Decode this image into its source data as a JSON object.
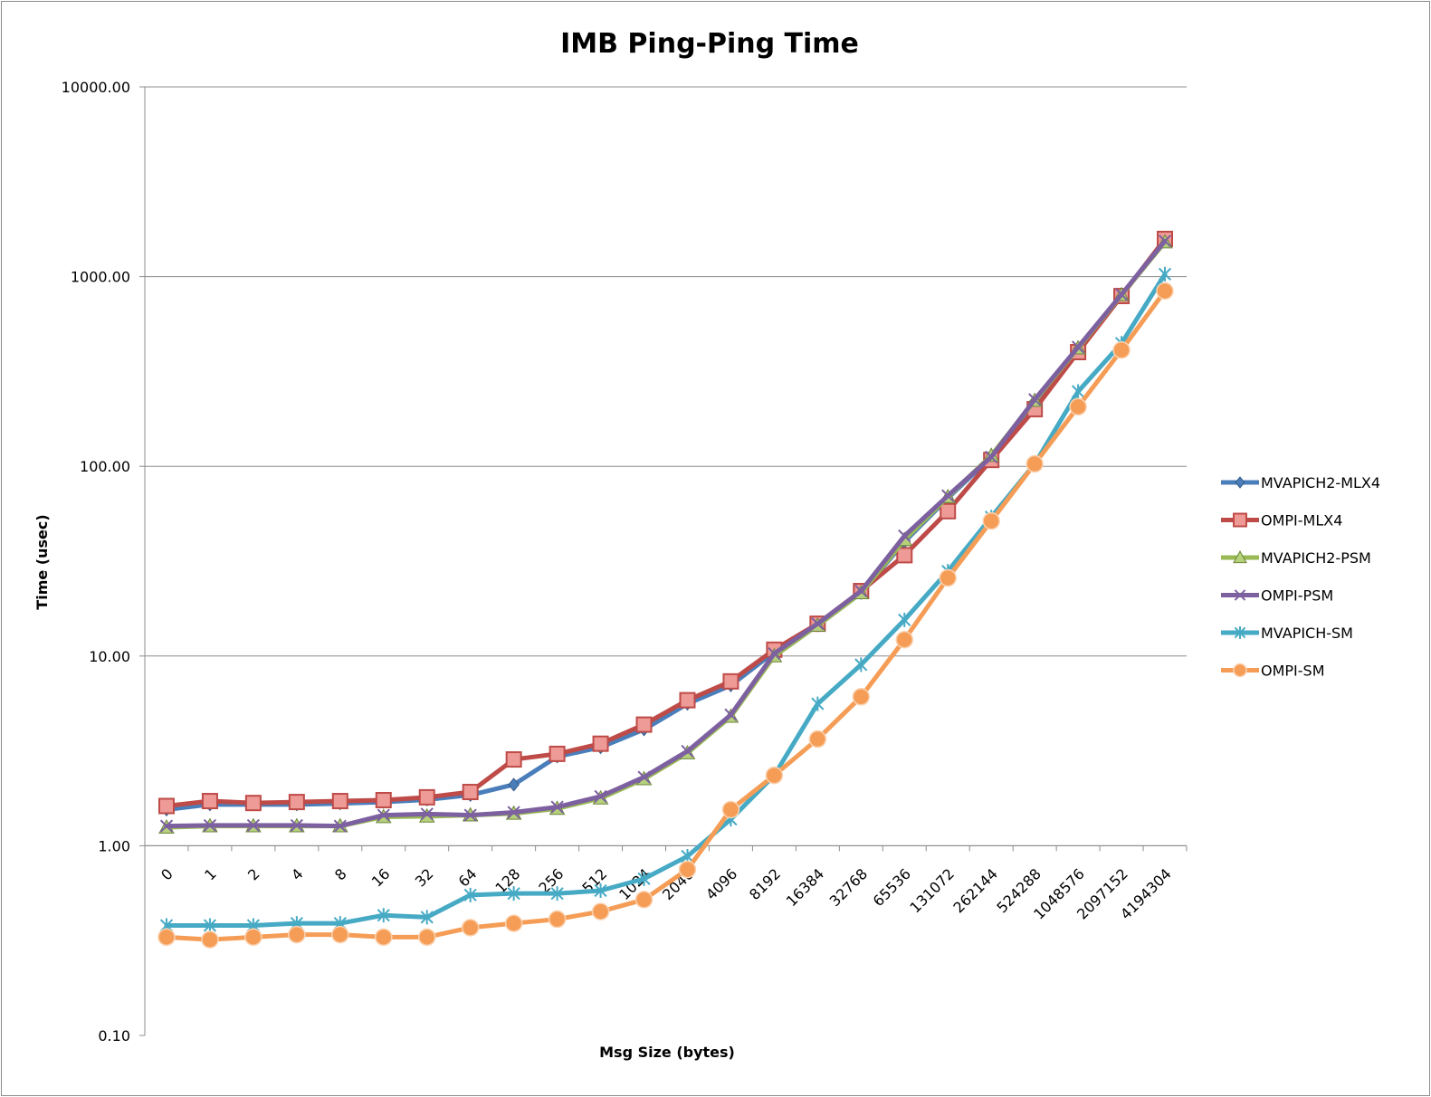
{
  "chart_data": {
    "type": "line",
    "title": "IMB Ping-Ping Time",
    "xlabel": "Msg Size (bytes)",
    "ylabel": "Time (usec)",
    "yscale": "log",
    "ylim": [
      0.1,
      10000
    ],
    "y_tick_labels": [
      "0.10",
      "1.00",
      "10.00",
      "100.00",
      "1000.00",
      "10000.00"
    ],
    "y_tick_values": [
      0.1,
      1,
      10,
      100,
      1000,
      10000
    ],
    "grid": "horizontal",
    "legend_position": "right",
    "categories": [
      "0",
      "1",
      "2",
      "4",
      "8",
      "16",
      "32",
      "64",
      "128",
      "256",
      "512",
      "1024",
      "2048",
      "4096",
      "8192",
      "16384",
      "32768",
      "65536",
      "131072",
      "262144",
      "524288",
      "1048576",
      "2097152",
      "4194304"
    ],
    "series": [
      {
        "name": "MVAPICH2-MLX4",
        "color": "#4a7ebb",
        "marker": "diamond",
        "values": [
          1.55,
          1.65,
          1.65,
          1.65,
          1.67,
          1.7,
          1.75,
          1.85,
          2.1,
          2.95,
          3.3,
          4.1,
          5.6,
          7.0,
          10.5,
          14.5,
          21.5,
          40,
          68,
          112,
          220,
          420,
          800,
          1560
        ]
      },
      {
        "name": "OMPI-MLX4",
        "color": "#be4b48",
        "marker": "square",
        "values": [
          1.62,
          1.72,
          1.68,
          1.7,
          1.72,
          1.74,
          1.8,
          1.92,
          2.85,
          3.05,
          3.45,
          4.35,
          5.85,
          7.35,
          10.8,
          14.8,
          22,
          34,
          58,
          108,
          200,
          400,
          790,
          1580
        ]
      },
      {
        "name": "MVAPICH2-PSM",
        "color": "#98b954",
        "marker": "triangle",
        "values": [
          1.25,
          1.27,
          1.27,
          1.27,
          1.27,
          1.42,
          1.43,
          1.45,
          1.48,
          1.57,
          1.78,
          2.25,
          3.08,
          4.8,
          10.0,
          14.5,
          21.5,
          41,
          69,
          114,
          222,
          420,
          800,
          1520
        ]
      },
      {
        "name": "OMPI-PSM",
        "color": "#7d60a0",
        "marker": "x",
        "values": [
          1.27,
          1.28,
          1.28,
          1.28,
          1.27,
          1.45,
          1.47,
          1.45,
          1.5,
          1.6,
          1.82,
          2.3,
          3.15,
          4.9,
          10.3,
          14.8,
          22,
          43,
          70,
          112,
          225,
          425,
          805,
          1540
        ]
      },
      {
        "name": "MVAPICH-SM",
        "color": "#46aac5",
        "marker": "star",
        "values": [
          0.38,
          0.38,
          0.38,
          0.39,
          0.39,
          0.43,
          0.42,
          0.55,
          0.56,
          0.56,
          0.58,
          0.67,
          0.88,
          1.38,
          2.35,
          5.6,
          9.0,
          15.5,
          28,
          54,
          103,
          248,
          445,
          1030
        ]
      },
      {
        "name": "OMPI-SM",
        "color": "#f59d56",
        "marker": "circle",
        "values": [
          0.33,
          0.32,
          0.33,
          0.34,
          0.34,
          0.33,
          0.33,
          0.37,
          0.39,
          0.41,
          0.45,
          0.52,
          0.75,
          1.55,
          2.35,
          3.65,
          6.1,
          12.2,
          25.8,
          51.5,
          103,
          206,
          410,
          840
        ]
      }
    ]
  }
}
